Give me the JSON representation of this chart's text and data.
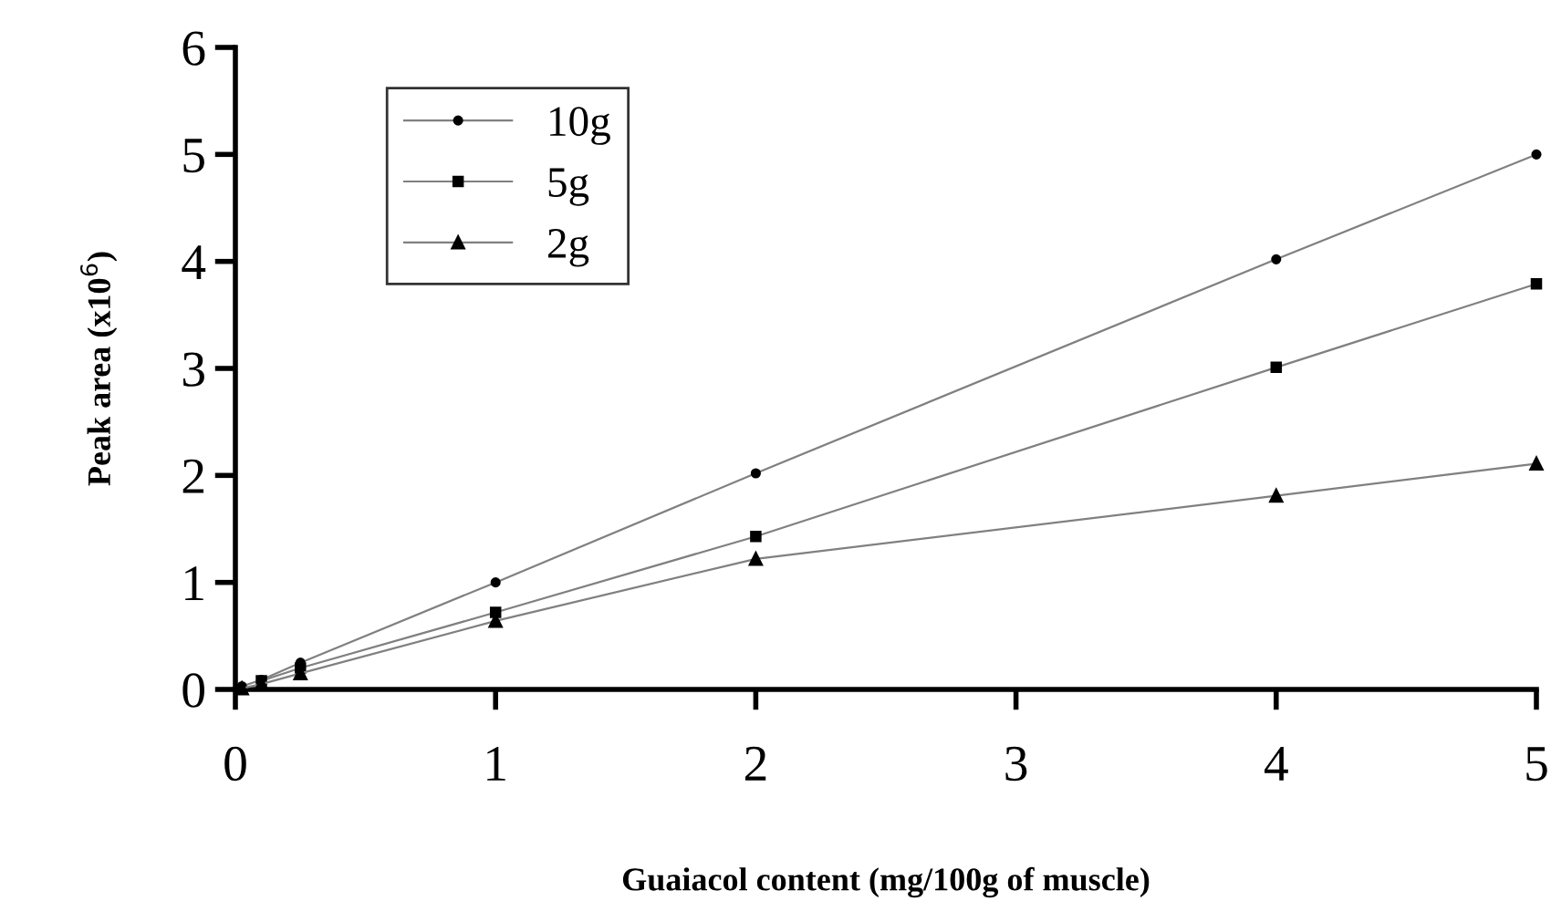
{
  "chart_data": {
    "type": "line",
    "xlabel": "Guaiacol content (mg/100g of muscle)",
    "ylabel": "Peak area (x10$^{6}$)",
    "x": [
      0.025,
      0.1,
      0.25,
      1,
      2,
      4,
      5
    ],
    "series": [
      {
        "name": "10g",
        "color": "#000000",
        "marker": "circle",
        "values": [
          0.03,
          0.09,
          0.25,
          1.0,
          2.02,
          4.02,
          5.0
        ]
      },
      {
        "name": "5g",
        "color": "#000000",
        "marker": "square",
        "values": [
          null,
          0.08,
          0.2,
          0.72,
          1.43,
          3.01,
          3.79
        ]
      },
      {
        "name": "2g",
        "color": "#000000",
        "marker": "triangle",
        "values": [
          0.01,
          0.05,
          0.15,
          0.64,
          1.22,
          1.81,
          2.11
        ]
      }
    ],
    "xlim": [
      0,
      5
    ],
    "ylim": [
      0,
      6
    ],
    "xticks": [
      0,
      1,
      2,
      3,
      4,
      5
    ],
    "yticks": [
      0,
      1,
      2,
      3,
      4,
      5,
      6
    ],
    "grid": false,
    "legend": "top left"
  }
}
